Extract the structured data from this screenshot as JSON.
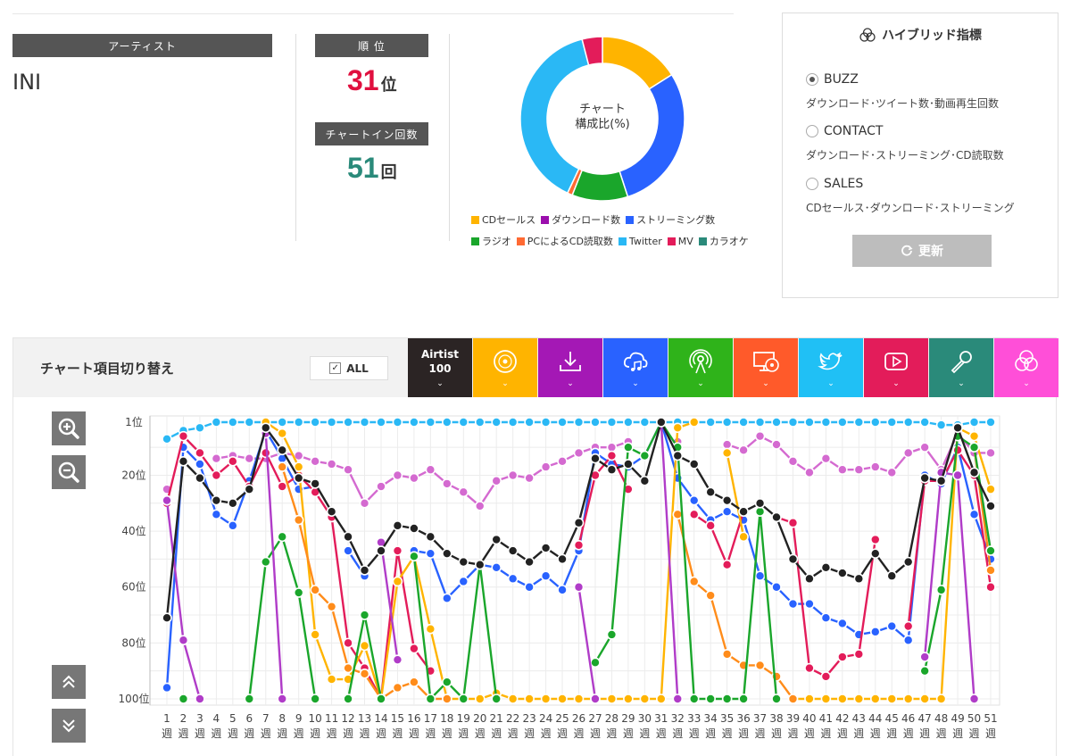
{
  "artist": {
    "label": "アーティスト",
    "name": "INI"
  },
  "rank": {
    "label": "順 位",
    "value": "31",
    "unit": "位"
  },
  "chartin": {
    "label": "チャートイン回数",
    "value": "51",
    "unit": "回"
  },
  "donut": {
    "center_line1": "チャート",
    "center_line2": "構成比(%)",
    "slices": [
      {
        "name": "CDセールス",
        "value": 16,
        "color": "#ffb400"
      },
      {
        "name": "ダウンロード数",
        "value": 0,
        "color": "#9b0fad"
      },
      {
        "name": "ストリーミング数",
        "value": 29,
        "color": "#2962ff"
      },
      {
        "name": "ラジオ",
        "value": 11,
        "color": "#1aa62b"
      },
      {
        "name": "PCによるCD読取数",
        "value": 1,
        "color": "#ff6a33"
      },
      {
        "name": "Twitter",
        "value": 39,
        "color": "#2ab8f5"
      },
      {
        "name": "MV",
        "value": 4,
        "color": "#e31c5a"
      },
      {
        "name": "カラオケ",
        "value": 0,
        "color": "#2a8a7a"
      }
    ]
  },
  "hybrid": {
    "title": "ハイブリッド指標",
    "options": [
      {
        "label": "BUZZ",
        "desc": "ダウンロード･ツイート数･動画再生回数",
        "selected": true
      },
      {
        "label": "CONTACT",
        "desc": "ダウンロード･ストリーミング･CD読取数",
        "selected": false
      },
      {
        "label": "SALES",
        "desc": "CDセールス･ダウンロード･ストリーミング",
        "selected": false
      }
    ],
    "update_label": "更新"
  },
  "panel": {
    "title": "チャート項目切り替え",
    "all_label": "ALL",
    "all_check": "✓",
    "categories": [
      {
        "name": "artist100",
        "label1": "Airtist",
        "label2": "100",
        "color": "#2b2424",
        "icon": "none"
      },
      {
        "name": "cd-sales",
        "color": "#ffb400",
        "icon": "cd-icon"
      },
      {
        "name": "download",
        "color": "#a418b5",
        "icon": "download-icon"
      },
      {
        "name": "streaming",
        "color": "#2962ff",
        "icon": "cloud-music-icon"
      },
      {
        "name": "radio",
        "color": "#2fb31a",
        "icon": "radio-tower-icon"
      },
      {
        "name": "pc-cd-read",
        "color": "#ff5a2a",
        "icon": "pc-cd-icon"
      },
      {
        "name": "twitter",
        "color": "#20c0f5",
        "icon": "twitter-icon"
      },
      {
        "name": "mv",
        "color": "#e31c5a",
        "icon": "play-icon"
      },
      {
        "name": "karaoke",
        "color": "#2a8a7a",
        "icon": "microphone-icon"
      },
      {
        "name": "hybrid",
        "color": "#ff4fd8",
        "icon": "hybrid-icon"
      }
    ],
    "arrow": "⌄"
  },
  "chart_data": {
    "type": "line",
    "y_reversed": true,
    "ylim": [
      1,
      100
    ],
    "y_ticks": [
      1,
      20,
      40,
      60,
      80,
      100
    ],
    "y_tick_suffix": "位",
    "x_tick_suffix": "週",
    "x": [
      1,
      2,
      3,
      4,
      5,
      6,
      7,
      8,
      9,
      10,
      11,
      12,
      13,
      14,
      15,
      16,
      17,
      18,
      19,
      20,
      21,
      22,
      23,
      24,
      25,
      26,
      27,
      28,
      29,
      30,
      31,
      32,
      33,
      34,
      35,
      36,
      37,
      38,
      39,
      40,
      41,
      42,
      43,
      44,
      45,
      46,
      47,
      48,
      49,
      50,
      51
    ],
    "grid": true,
    "series": [
      {
        "key": "hybrid",
        "color": "#d46ad0",
        "values": [
          25,
          null,
          null,
          14,
          13,
          14,
          14,
          12,
          13,
          15,
          16,
          18,
          30,
          24,
          20,
          21,
          18,
          23,
          26,
          31,
          22,
          20,
          21,
          17,
          15,
          12,
          10,
          10,
          8,
          null,
          null,
          8,
          null,
          null,
          9,
          11,
          6,
          9,
          15,
          19,
          14,
          18,
          18,
          17,
          19,
          12,
          10,
          18,
          5,
          12,
          12
        ]
      },
      {
        "key": "twitter",
        "color": "#2ab8f5",
        "values": [
          7,
          4,
          3,
          1,
          1,
          1,
          1,
          1,
          1,
          1,
          1,
          1,
          1,
          1,
          1,
          1,
          1,
          1,
          1,
          1,
          1,
          1,
          1,
          1,
          1,
          1,
          1,
          1,
          1,
          1,
          1,
          1,
          1,
          1,
          1,
          1,
          1,
          1,
          1,
          1,
          1,
          1,
          1,
          1,
          1,
          1,
          1,
          2,
          2,
          1,
          1
        ]
      },
      {
        "key": "streaming",
        "color": "#2962ff",
        "values": [
          96,
          10,
          16,
          34,
          38,
          22,
          4,
          14,
          25,
          24,
          null,
          47,
          56,
          null,
          null,
          47,
          48,
          64,
          58,
          52,
          53,
          57,
          60,
          56,
          61,
          47,
          12,
          16,
          17,
          13,
          1,
          21,
          29,
          36,
          33,
          36,
          56,
          60,
          66,
          66,
          71,
          73,
          77,
          76,
          74,
          79,
          20,
          23,
          10,
          34,
          50
        ]
      },
      {
        "key": "mv",
        "color": "#e31c5a",
        "values": [
          30,
          6,
          12,
          20,
          15,
          24,
          12,
          24,
          20,
          26,
          35,
          80,
          89,
          100,
          47,
          82,
          90,
          null,
          null,
          null,
          null,
          null,
          null,
          null,
          null,
          45,
          20,
          13,
          25,
          null,
          null,
          null,
          34,
          38,
          52,
          33,
          null,
          35,
          37,
          89,
          92,
          85,
          84,
          43,
          null,
          74,
          22,
          22,
          11,
          20,
          60
        ]
      },
      {
        "key": "cdsales",
        "color": "#ffb400",
        "values": [
          null,
          null,
          null,
          null,
          null,
          null,
          1,
          5,
          17,
          77,
          93,
          93,
          81,
          100,
          58,
          49,
          75,
          100,
          100,
          100,
          98,
          100,
          100,
          100,
          100,
          100,
          100,
          100,
          100,
          100,
          100,
          3,
          1,
          null,
          12,
          42,
          null,
          null,
          100,
          100,
          100,
          100,
          100,
          100,
          100,
          100,
          100,
          100,
          3,
          6,
          25
        ]
      },
      {
        "key": "pccd",
        "color": "#ff8c1a",
        "values": [
          null,
          null,
          null,
          null,
          null,
          null,
          null,
          17,
          36,
          61,
          67,
          89,
          91,
          100,
          96,
          94,
          100,
          100,
          null,
          null,
          null,
          null,
          null,
          null,
          null,
          null,
          null,
          null,
          null,
          null,
          null,
          34,
          58,
          63,
          84,
          88,
          88,
          92,
          100,
          null,
          null,
          null,
          null,
          null,
          null,
          null,
          null,
          null,
          null,
          10,
          54
        ]
      },
      {
        "key": "radio",
        "color": "#1aa62b",
        "values": [
          null,
          100,
          null,
          null,
          null,
          100,
          51,
          42,
          62,
          100,
          null,
          100,
          70,
          100,
          null,
          49,
          100,
          94,
          100,
          52,
          100,
          null,
          null,
          null,
          null,
          null,
          87,
          77,
          10,
          13,
          1,
          10,
          100,
          100,
          100,
          100,
          33,
          100,
          null,
          null,
          null,
          null,
          null,
          null,
          null,
          null,
          90,
          61,
          6,
          10,
          47
        ]
      },
      {
        "key": "download",
        "color": "#b03cc8",
        "values": [
          29,
          79,
          100,
          null,
          null,
          null,
          5,
          100,
          null,
          null,
          null,
          null,
          null,
          44,
          86,
          null,
          null,
          null,
          null,
          null,
          null,
          null,
          null,
          null,
          null,
          60,
          100,
          null,
          null,
          null,
          1,
          100,
          null,
          null,
          null,
          null,
          null,
          null,
          null,
          null,
          null,
          null,
          null,
          null,
          null,
          null,
          85,
          19,
          20,
          100,
          null
        ]
      },
      {
        "key": "artist100",
        "color": "#222222",
        "values": [
          71,
          15,
          21,
          29,
          30,
          25,
          3,
          11,
          21,
          23,
          33,
          42,
          54,
          47,
          38,
          39,
          42,
          48,
          51,
          52,
          43,
          47,
          51,
          46,
          50,
          37,
          14,
          18,
          16,
          22,
          1,
          13,
          16,
          26,
          29,
          33,
          30,
          35,
          50,
          57,
          53,
          55,
          57,
          48,
          56,
          51,
          21,
          22,
          3,
          19,
          31
        ]
      }
    ]
  }
}
